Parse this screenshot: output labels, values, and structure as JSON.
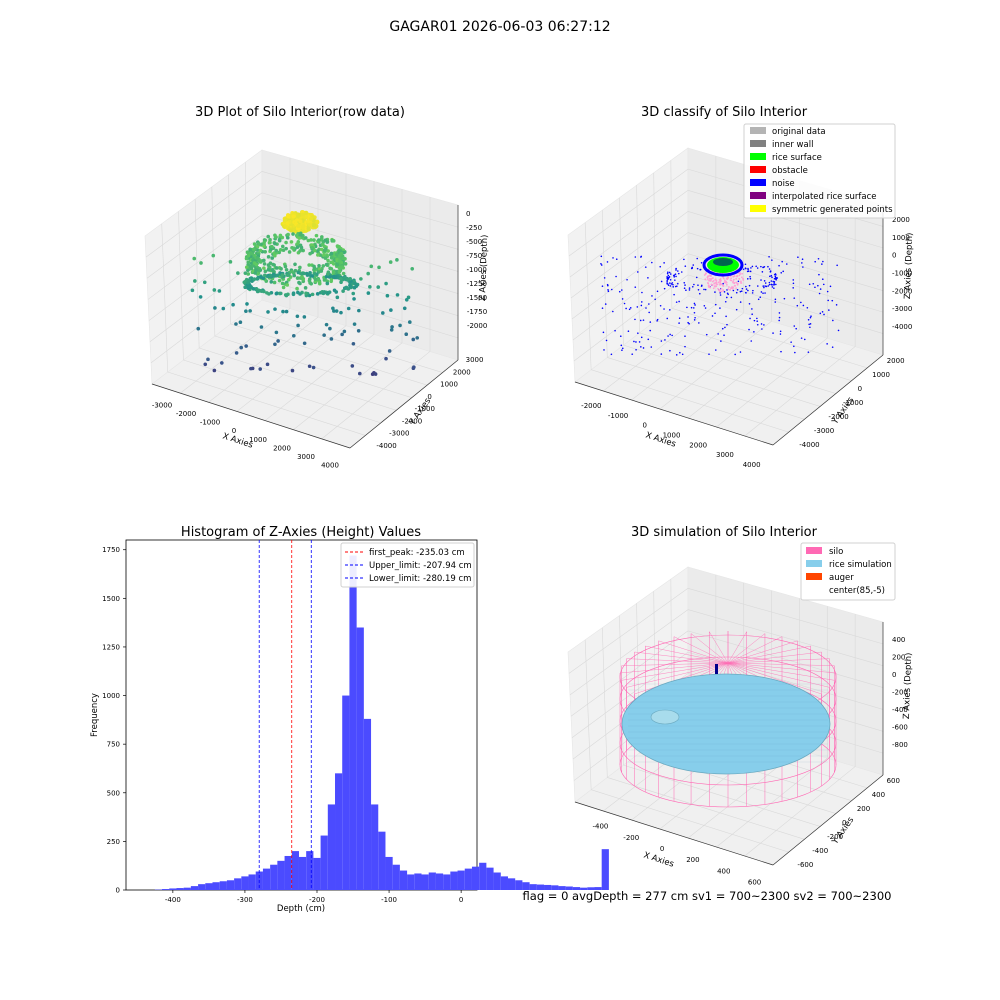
{
  "figure": {
    "suptitle": "GAGAR01 2026-06-03 06:27:12",
    "footer": "flag = 0     avgDepth = 277 cm  sv1 = 700~2300  sv2 = 700~2300"
  },
  "panels": {
    "raw": {
      "title": "3D Plot of Silo Interior(row data)",
      "xlabel": "X Axies",
      "ylabel": "Y Axies",
      "zlabel": "Z Axies (Depth)",
      "xticks": [
        "-3000",
        "-2000",
        "-1000",
        "0",
        "1000",
        "2000",
        "3000",
        "4000"
      ],
      "yticks": [
        "-4000",
        "-3000",
        "-2000",
        "-1000",
        "0",
        "1000",
        "2000",
        "3000"
      ],
      "zticks": [
        "0",
        "-250",
        "-500",
        "-750",
        "-1000",
        "-1250",
        "-1500",
        "-1750",
        "-2000"
      ]
    },
    "classify": {
      "title": "3D classify of Silo Interior",
      "xlabel": "X Axies",
      "ylabel": "Y Axies",
      "zlabel": "Z Axies (Depth)",
      "xticks": [
        "-2000",
        "-1000",
        "0",
        "1000",
        "2000",
        "3000",
        "4000"
      ],
      "yticks": [
        "-4000",
        "-3000",
        "-2000",
        "-1000",
        "0",
        "1000",
        "2000"
      ],
      "zticks": [
        "2000",
        "1000",
        "0",
        "-1000",
        "-2000",
        "-3000",
        "-4000"
      ],
      "legend": [
        {
          "label": "original data",
          "color": "#b4b4b4"
        },
        {
          "label": "inner wall",
          "color": "#808080"
        },
        {
          "label": "rice surface",
          "color": "#00ff00"
        },
        {
          "label": "obstacle",
          "color": "#ff0000"
        },
        {
          "label": "noise",
          "color": "#0000ff"
        },
        {
          "label": "interpolated rice surface",
          "color": "#800080"
        },
        {
          "label": "symmetric generated points",
          "color": "#ffff00"
        }
      ]
    },
    "simulation": {
      "title": "3D simulation of Silo Interior",
      "xlabel": "X Axies",
      "ylabel": "Y Axies",
      "zlabel": "Z Axies (Depth)",
      "xticks": [
        "-400",
        "-200",
        "0",
        "200",
        "400",
        "600"
      ],
      "yticks": [
        "-600",
        "-400",
        "-200",
        "0",
        "200",
        "400",
        "600"
      ],
      "zticks": [
        "400",
        "200",
        "0",
        "-200",
        "-400",
        "-600",
        "-800"
      ],
      "legend": [
        {
          "label": "silo",
          "color": "#ff69b4"
        },
        {
          "label": "rice simulation",
          "color": "#87ceeb"
        },
        {
          "label": "auger",
          "color": "#ff4500"
        },
        {
          "label": "center(85,-5)",
          "color": "none"
        }
      ]
    }
  },
  "chart_data": {
    "type": "bar",
    "title": "Histogram of Z-Axies (Height) Values",
    "xlabel": "Depth (cm)",
    "ylabel": "Frequency",
    "xlim": [
      -465,
      22
    ],
    "ylim": [
      0,
      1800
    ],
    "xticks": [
      -400,
      -300,
      -200,
      -100,
      0
    ],
    "yticks": [
      0,
      250,
      500,
      750,
      1000,
      1250,
      1500,
      1750
    ],
    "bin_start": -425,
    "bin_width": 10,
    "values": [
      2,
      5,
      8,
      10,
      12,
      20,
      30,
      35,
      40,
      45,
      50,
      60,
      70,
      80,
      95,
      110,
      130,
      150,
      175,
      200,
      170,
      200,
      165,
      280,
      440,
      600,
      1000,
      1720,
      1350,
      880,
      440,
      300,
      170,
      130,
      100,
      80,
      85,
      80,
      90,
      85,
      80,
      95,
      100,
      110,
      120,
      140,
      115,
      90,
      70,
      60,
      50,
      40,
      30,
      28,
      26,
      24,
      20,
      18,
      15,
      12,
      14,
      15,
      210,
      0,
      0
    ],
    "vlines": [
      {
        "label": "first_peak: -235.03 cm",
        "x": -235.03,
        "color": "#ff0000"
      },
      {
        "label": "Upper_limit: -207.94 cm",
        "x": -207.94,
        "color": "#0000ff"
      },
      {
        "label": "Lower_limit: -280.19 cm",
        "x": -280.19,
        "color": "#0000ff"
      }
    ],
    "bar_color": "#4b4bff"
  }
}
